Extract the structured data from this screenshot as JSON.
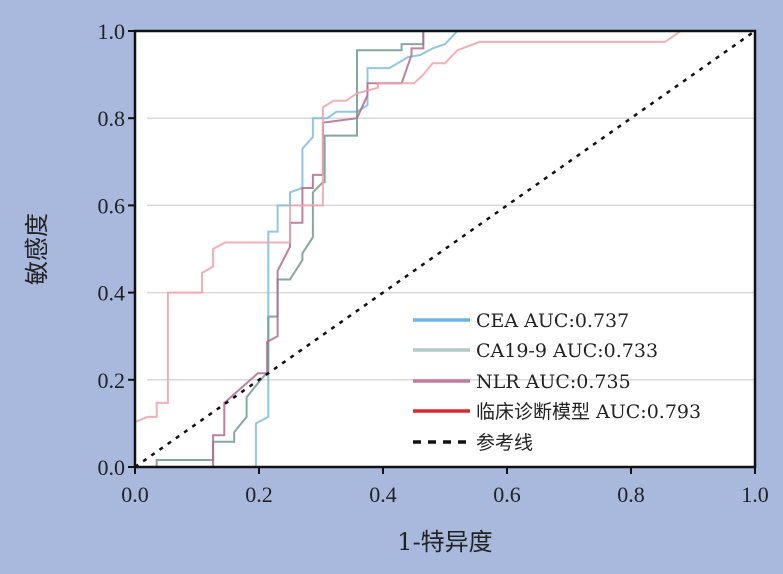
{
  "chart_data": {
    "type": "line",
    "title": "",
    "xlabel": "1-特异度",
    "ylabel": "敏感度",
    "xlim": [
      0,
      1
    ],
    "ylim": [
      0,
      1
    ],
    "xticks": [
      "0.0",
      "0.2",
      "0.4",
      "0.6",
      "0.8",
      "1.0"
    ],
    "yticks": [
      "0.0",
      "0.2",
      "0.4",
      "0.6",
      "0.8",
      "1.0"
    ],
    "grid": "horizontal",
    "legend_position": "bottom-right",
    "series": [
      {
        "name": "CEA AUC:0.737",
        "color": "#6cb6e6",
        "line_color": "#7dbbe3",
        "points": [
          [
            0,
            0
          ],
          [
            0.144,
            0
          ],
          [
            0.195,
            0
          ],
          [
            0.195,
            0.1
          ],
          [
            0.215,
            0.115
          ],
          [
            0.215,
            0.54
          ],
          [
            0.23,
            0.54
          ],
          [
            0.23,
            0.6
          ],
          [
            0.25,
            0.6
          ],
          [
            0.25,
            0.63
          ],
          [
            0.27,
            0.64
          ],
          [
            0.27,
            0.73
          ],
          [
            0.287,
            0.757
          ],
          [
            0.287,
            0.8
          ],
          [
            0.31,
            0.8
          ],
          [
            0.325,
            0.815
          ],
          [
            0.358,
            0.815
          ],
          [
            0.375,
            0.83
          ],
          [
            0.375,
            0.915
          ],
          [
            0.41,
            0.915
          ],
          [
            0.44,
            0.94
          ],
          [
            0.46,
            0.945
          ],
          [
            0.48,
            0.96
          ],
          [
            0.5,
            0.97
          ],
          [
            0.52,
            1.0
          ],
          [
            1,
            1
          ]
        ]
      },
      {
        "name": "CA19-9 AUC:0.733",
        "color": "#aecbc4",
        "line_color": "#6f9a8f",
        "points": [
          [
            0.035,
            0
          ],
          [
            0.035,
            0.016
          ],
          [
            0.126,
            0.016
          ],
          [
            0.126,
            0.058
          ],
          [
            0.16,
            0.058
          ],
          [
            0.16,
            0.08
          ],
          [
            0.18,
            0.115
          ],
          [
            0.18,
            0.16
          ],
          [
            0.197,
            0.19
          ],
          [
            0.215,
            0.22
          ],
          [
            0.215,
            0.345
          ],
          [
            0.23,
            0.345
          ],
          [
            0.23,
            0.43
          ],
          [
            0.25,
            0.43
          ],
          [
            0.27,
            0.475
          ],
          [
            0.27,
            0.49
          ],
          [
            0.287,
            0.527
          ],
          [
            0.287,
            0.63
          ],
          [
            0.303,
            0.653
          ],
          [
            0.306,
            0.653
          ],
          [
            0.306,
            0.76
          ],
          [
            0.358,
            0.76
          ],
          [
            0.358,
            0.956
          ],
          [
            0.43,
            0.956
          ],
          [
            0.43,
            0.97
          ],
          [
            0.465,
            0.97
          ],
          [
            0.465,
            1.0
          ],
          [
            1,
            1
          ]
        ]
      },
      {
        "name": "NLR AUC:0.735",
        "color": "#c47c9e",
        "line_color": "#b26a8f",
        "points": [
          [
            0.126,
            0
          ],
          [
            0.126,
            0.073
          ],
          [
            0.144,
            0.073
          ],
          [
            0.144,
            0.147
          ],
          [
            0.198,
            0.215
          ],
          [
            0.213,
            0.215
          ],
          [
            0.213,
            0.287
          ],
          [
            0.23,
            0.3
          ],
          [
            0.23,
            0.45
          ],
          [
            0.25,
            0.505
          ],
          [
            0.25,
            0.56
          ],
          [
            0.27,
            0.56
          ],
          [
            0.27,
            0.64
          ],
          [
            0.287,
            0.64
          ],
          [
            0.287,
            0.67
          ],
          [
            0.303,
            0.67
          ],
          [
            0.303,
            0.79
          ],
          [
            0.358,
            0.8
          ],
          [
            0.375,
            0.853
          ],
          [
            0.375,
            0.88
          ],
          [
            0.43,
            0.88
          ],
          [
            0.446,
            0.945
          ],
          [
            0.446,
            0.96
          ],
          [
            0.465,
            0.96
          ],
          [
            0.465,
            1.0
          ],
          [
            1,
            1
          ]
        ]
      },
      {
        "name": "临床诊断模型 AUC:0.793",
        "color": "#e0262e",
        "line_color": "#f2a0a8",
        "points": [
          [
            0,
            0.103
          ],
          [
            0.02,
            0.115
          ],
          [
            0.035,
            0.115
          ],
          [
            0.035,
            0.147
          ],
          [
            0.053,
            0.147
          ],
          [
            0.053,
            0.4
          ],
          [
            0.108,
            0.4
          ],
          [
            0.108,
            0.445
          ],
          [
            0.126,
            0.46
          ],
          [
            0.126,
            0.5
          ],
          [
            0.145,
            0.515
          ],
          [
            0.25,
            0.515
          ],
          [
            0.25,
            0.6
          ],
          [
            0.303,
            0.6
          ],
          [
            0.303,
            0.825
          ],
          [
            0.32,
            0.84
          ],
          [
            0.34,
            0.84
          ],
          [
            0.358,
            0.857
          ],
          [
            0.392,
            0.87
          ],
          [
            0.392,
            0.88
          ],
          [
            0.45,
            0.88
          ],
          [
            0.465,
            0.9
          ],
          [
            0.48,
            0.926
          ],
          [
            0.5,
            0.926
          ],
          [
            0.52,
            0.956
          ],
          [
            0.556,
            0.975
          ],
          [
            0.855,
            0.975
          ],
          [
            0.87,
            0.99
          ],
          [
            0.88,
            1.0
          ],
          [
            1,
            1
          ]
        ]
      },
      {
        "name": "参考线",
        "color": "#111111",
        "line_color": "#111111",
        "dashed": true,
        "points": [
          [
            0,
            0
          ],
          [
            1,
            1
          ]
        ]
      }
    ]
  }
}
